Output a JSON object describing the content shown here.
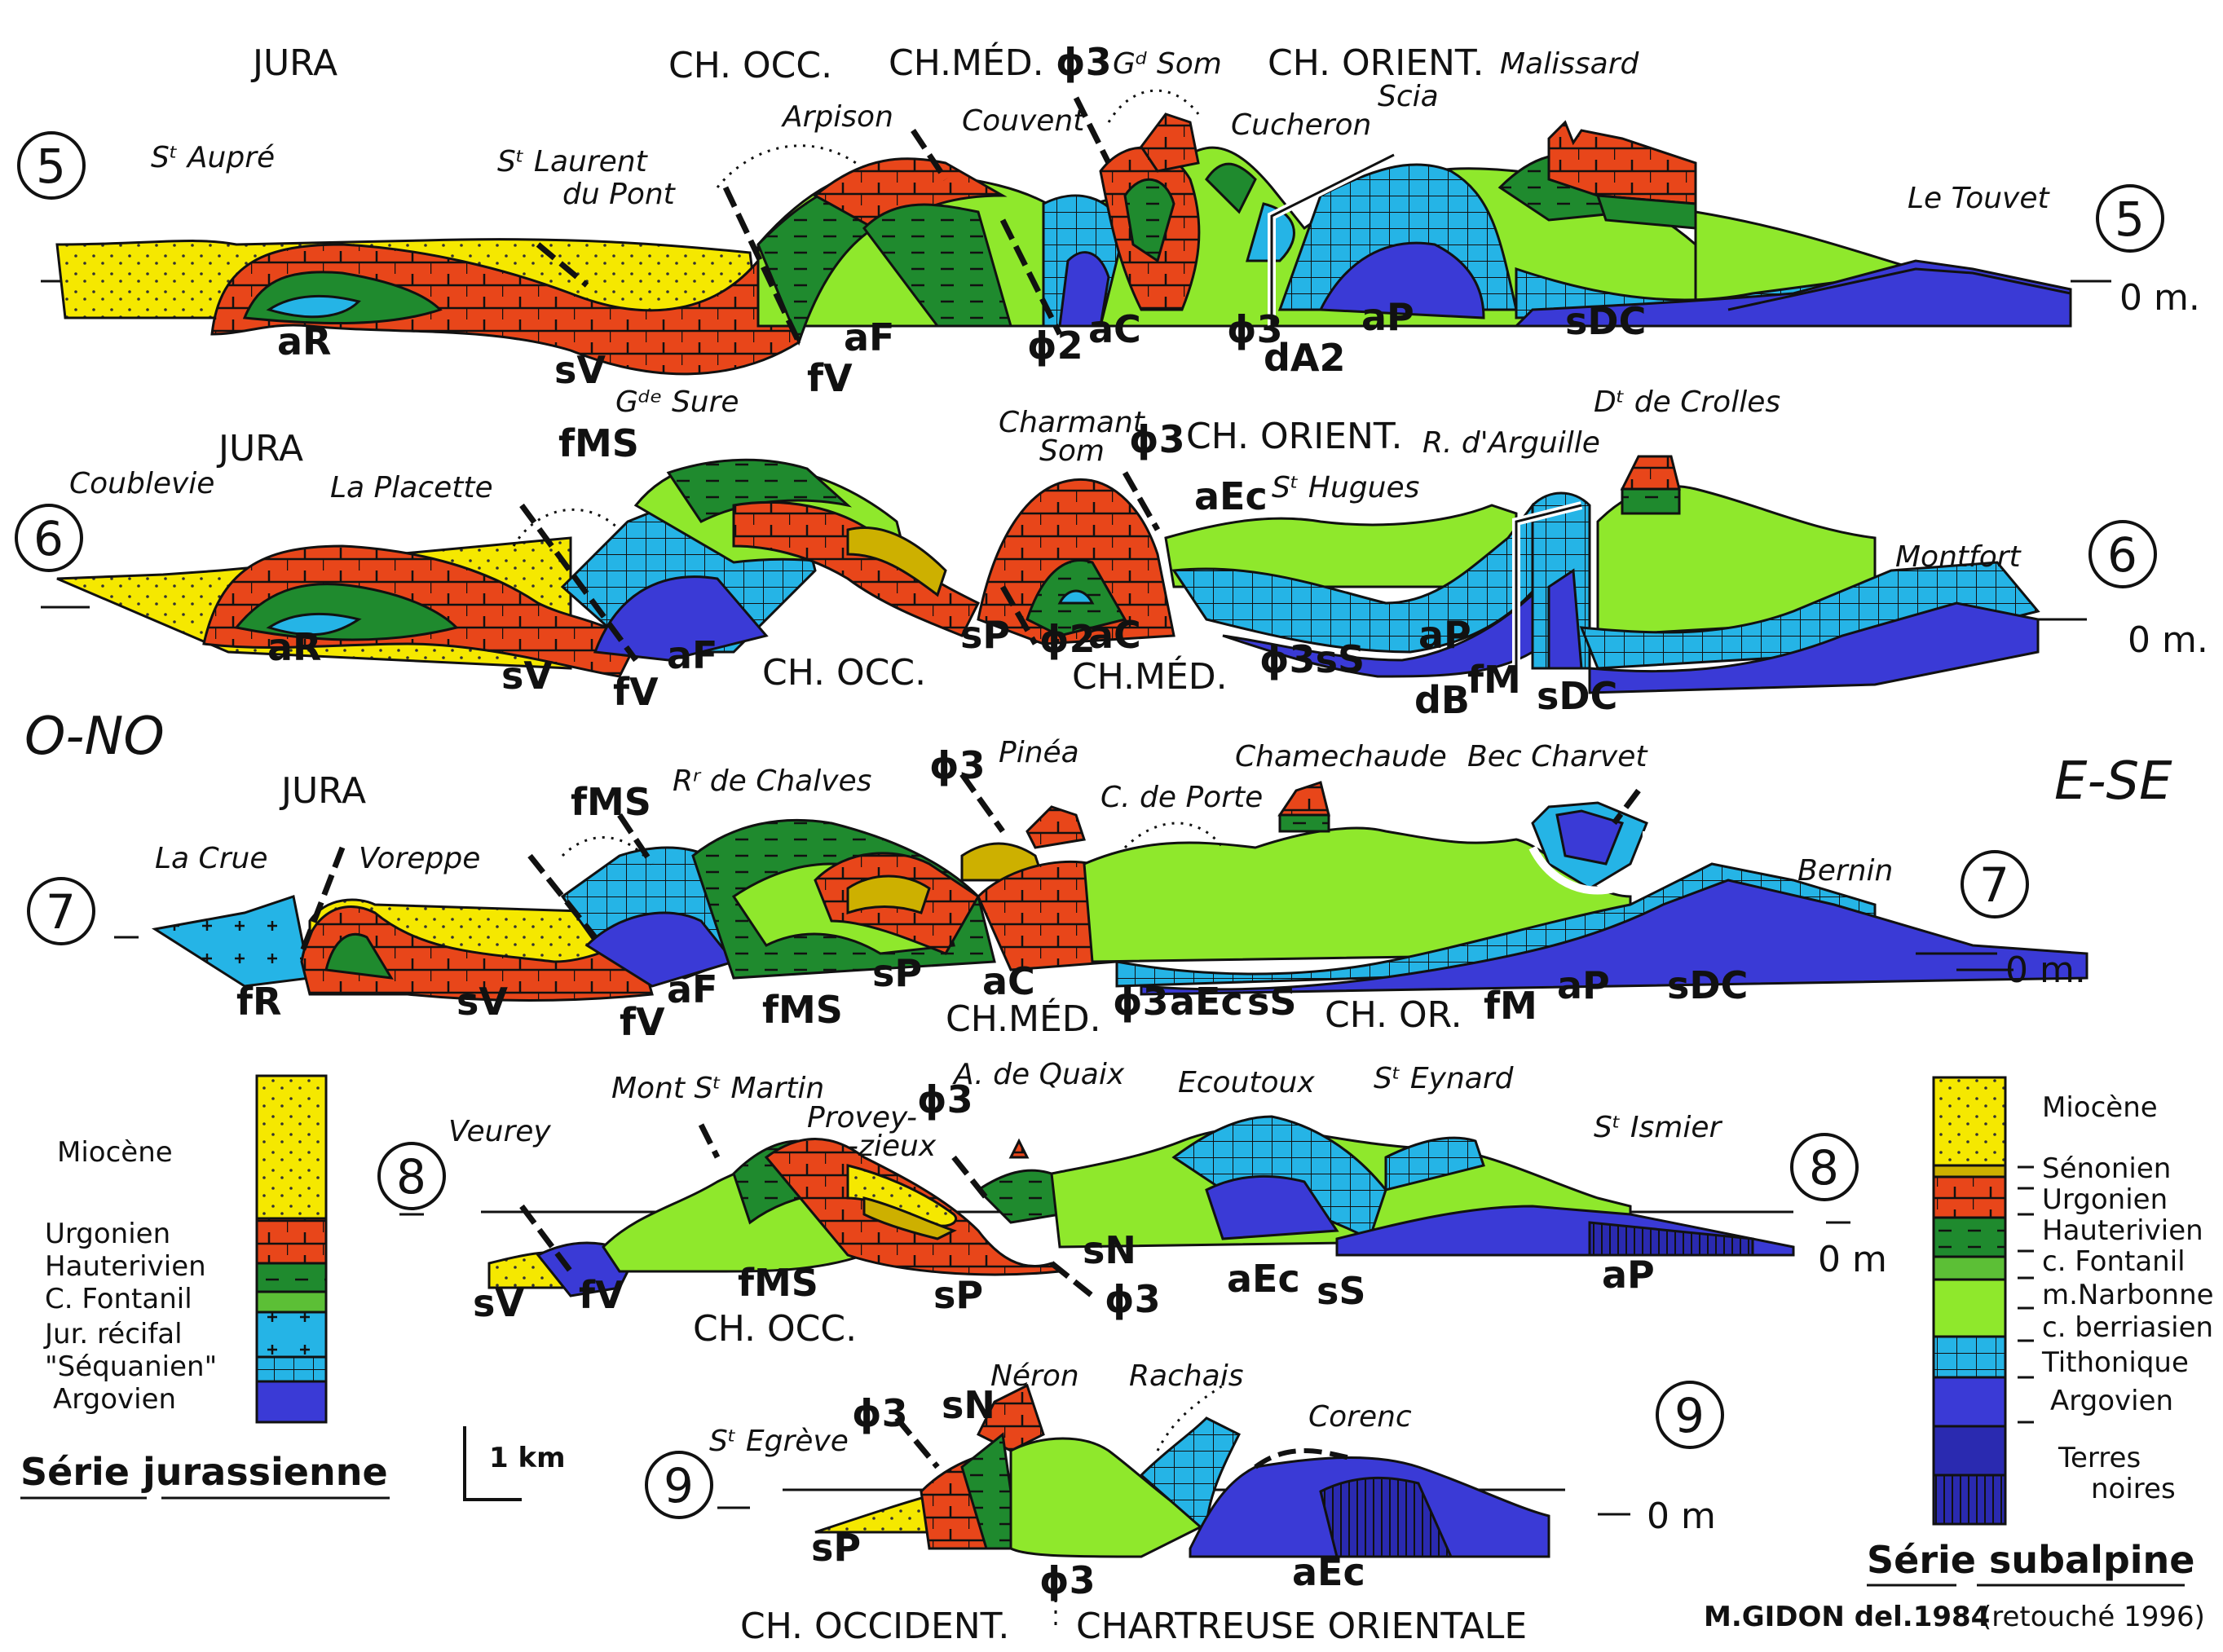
{
  "colors": {
    "miocene": "#f5e800",
    "urgonien": "#e8461a",
    "hauterivien": "#1f8a2e",
    "fontanil": "#5cbf36",
    "berriasien": "#8fe82c",
    "tithonique": "#25b4e6",
    "argovien": "#3a3ad6",
    "terres_noires": "#2a2ab0"
  },
  "headers": {
    "west": "O-NO",
    "east": "E-SE"
  },
  "sections": {
    "s5": {
      "num_left": "5",
      "num_right": "5",
      "zero": "0 m.",
      "labels": {
        "jura": "JURA",
        "ch_occ": "CH. OCC.",
        "ch_med": "CH.MÉD.",
        "phi3_top": "ϕ3",
        "gd_som": "Gᵈ Som",
        "ch_orient": "CH. ORIENT.",
        "malissard": "Malissard",
        "st_aupre": "Sᵗ Aupré",
        "st_laurent": "Sᵗ Laurent",
        "du_pont": "du Pont",
        "arpison": "Arpison",
        "couvent": "Couvent",
        "cucheron": "Cucheron",
        "scia": "Scia",
        "le_touvet": "Le Touvet",
        "aR": "aR",
        "sV": "sV",
        "fV": "fV",
        "aF": "aF",
        "phi2": "ϕ2",
        "aC": "aC",
        "phi3_bot": "ϕ3",
        "dA2": "dA2",
        "aP": "aP",
        "sDC": "sDC"
      }
    },
    "s6": {
      "num_left": "6",
      "num_right": "6",
      "zero": "0 m.",
      "labels": {
        "jura": "JURA",
        "coublevie": "Coublevie",
        "la_placette": "La Placette",
        "fMS": "fMS",
        "gde_sure": "Gᵈᵉ Sure",
        "charmant": "Charmant",
        "som": "Som",
        "phi3_top": "ϕ3",
        "ch_orient": "CH. ORIENT.",
        "r_arguille": "R. d'Arguille",
        "dt_crolles": "Dᵗ de Crolles",
        "aEc": "aEc",
        "st_hugues": "Sᵗ Hugues",
        "montfort": "Montfort",
        "aR": "aR",
        "sV": "sV",
        "fV": "fV",
        "aF": "aF",
        "ch_occ": "CH. OCC.",
        "sP": "sP",
        "phi2": "ϕ2",
        "aC": "aC",
        "ch_med": "CH.MÉD.",
        "phi3_sS": "ϕ3sS",
        "aP": "aP",
        "dB": "dB",
        "fM": "fM",
        "sDC": "sDC"
      }
    },
    "s7": {
      "num_left": "7",
      "num_right": "7",
      "zero": "0 m.",
      "labels": {
        "jura": "JURA",
        "fMS_top": "fMS",
        "rr_chalves": "Rʳ de Chalves",
        "phi3_top": "ϕ3",
        "pinea": "Pinéa",
        "chamechaude": "Chamechaude",
        "bec_charvet": "Bec Charvet",
        "la_crue": "La Crue",
        "voreppe": "Voreppe",
        "c_porte": "C. de Porte",
        "bernin": "Bernin",
        "fR": "fR",
        "sV": "sV",
        "fV": "fV",
        "aF": "aF",
        "fMS": "fMS",
        "sP": "sP",
        "aC": "aC",
        "ch_med": "CH.MÉD.",
        "phi3": "ϕ3",
        "aEc": "aEc",
        "sS": "sS",
        "ch_or": "CH. OR.",
        "fM": "fM",
        "aP": "aP",
        "sDC": "sDC"
      }
    },
    "s8": {
      "num_left": "8",
      "num_right": "8",
      "zero": "0 m",
      "labels": {
        "veurey": "Veurey",
        "mont_st_martin": "Mont Sᵗ Martin",
        "provey1": "Provey-",
        "provey2": "-zieux",
        "phi3_top": "ϕ3",
        "quaix": "A. de Quaix",
        "ecoutoux": "Ecoutoux",
        "st_eynard": "Sᵗ Eynard",
        "st_ismier": "Sᵗ Ismier",
        "sV": "sV",
        "fV": "fV",
        "fMS": "fMS",
        "ch_occ": "CH. OCC.",
        "sP": "sP",
        "sN": "sN",
        "phi3": "ϕ3",
        "aEc": "aEc",
        "sS": "sS",
        "aP": "aP"
      }
    },
    "s9": {
      "num_left": "9",
      "num_right": "9",
      "zero": "0 m",
      "labels": {
        "st_egreve": "Sᵗ Egrève",
        "phi3_top": "ϕ3",
        "sN": "sN",
        "neron": "Néron",
        "rachais": "Rachais",
        "corenc": "Corenc",
        "sP": "sP",
        "phi3": "ϕ3",
        "aEc": "aEc",
        "ch_occident": "CH. OCCIDENT.",
        "chartreuse_or": "CHARTREUSE ORIENTALE"
      }
    }
  },
  "legend_left": {
    "title": "Série jurassienne",
    "items": [
      "Miocène",
      "Urgonien",
      "Hauterivien",
      "C. Fontanil",
      "Jur. récifal",
      "\"Séquanien\"",
      "Argovien"
    ]
  },
  "legend_right": {
    "title": "Série subalpine",
    "items": [
      "Miocène",
      "Sénonien",
      "Urgonien",
      "Hauterivien",
      "c. Fontanil",
      "m.Narbonne",
      "c. berriasien",
      "Tithonique",
      "Argovien",
      "Terres",
      "noires"
    ]
  },
  "scale": {
    "label": "1 km"
  },
  "signature": {
    "author": "M.GIDON del.1984",
    "note": "(retouché 1996)"
  }
}
